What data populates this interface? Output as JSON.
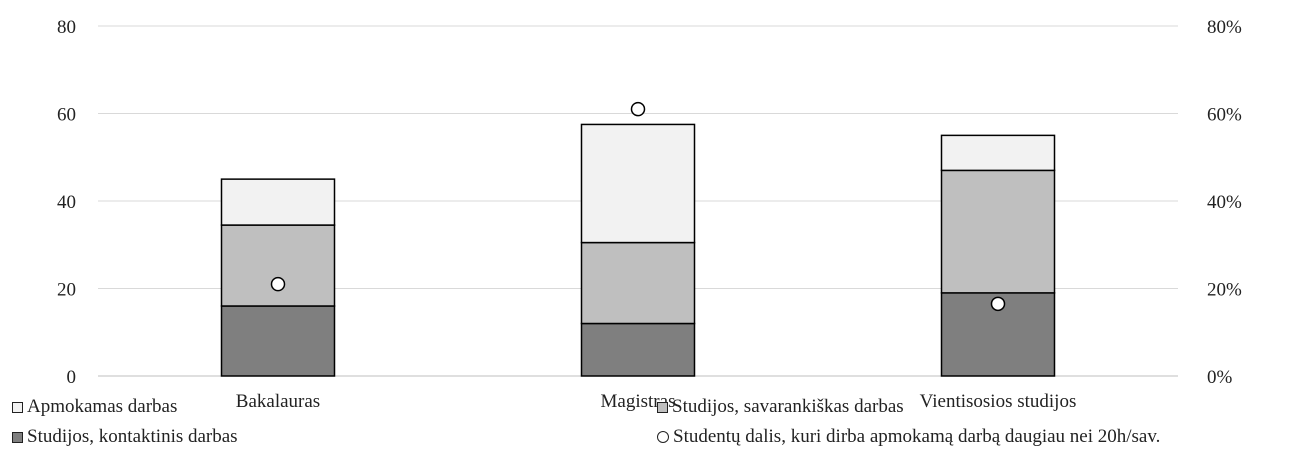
{
  "chart_data": {
    "type": "bar",
    "stacked": true,
    "categories": [
      "Bakalauras",
      "Magistras",
      "Vientisosios studijos"
    ],
    "series": [
      {
        "name": "Studijos, kontaktinis darbas",
        "values": [
          16,
          12,
          19
        ],
        "color": "#7f7f7f"
      },
      {
        "name": "Studijos, savarankiškas darbas",
        "values": [
          18.5,
          18.5,
          28
        ],
        "color": "#bfbfbf"
      },
      {
        "name": "Apmokamas darbas",
        "values": [
          10.5,
          27,
          8
        ],
        "color": "#f2f2f2"
      }
    ],
    "secondary_series": {
      "name": "Studentų dalis, kuri dirba apmokamą darbą daugiau nei 20h/sav.",
      "type": "scatter",
      "axis": "right",
      "values": [
        0.21,
        0.61,
        0.165
      ]
    },
    "ylim": [
      0,
      80
    ],
    "y_ticks": [
      "0",
      "20",
      "40",
      "60",
      "80"
    ],
    "y2lim": [
      0,
      0.8
    ],
    "y2_ticks": [
      "0%",
      "20%",
      "40%",
      "60%",
      "80%"
    ],
    "grid": true,
    "legend_position": "bottom"
  },
  "legend": {
    "apmokamas": "Apmokamas darbas",
    "savarankiskas": "Studijos, savarankiškas darbas",
    "kontaktinis": "Studijos, kontaktinis darbas",
    "dalis": "Studentų dalis, kuri dirba apmokamą darbą daugiau nei 20h/sav."
  }
}
